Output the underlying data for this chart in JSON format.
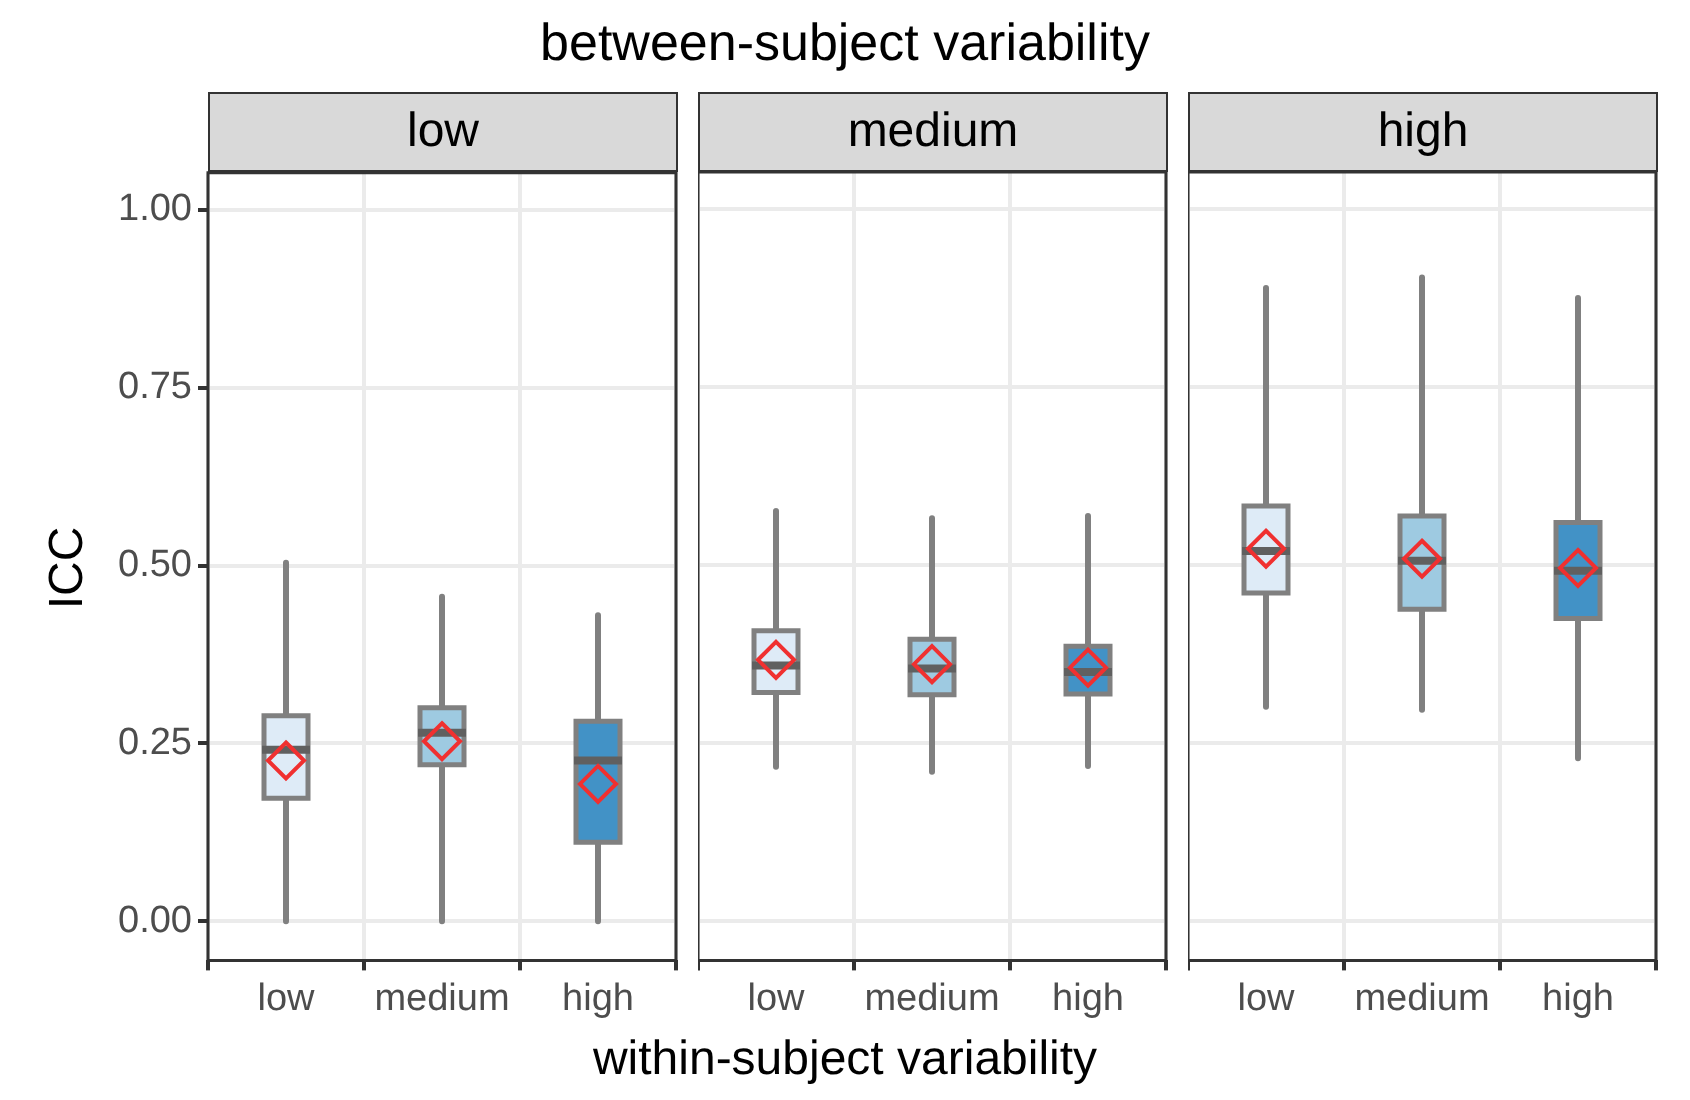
{
  "chart_data": [
    {
      "type": "box",
      "title": "low",
      "ylabel": "ICC",
      "categories": [
        "low",
        "medium",
        "high"
      ],
      "colors": [
        "#deebf7",
        "#9ecae1",
        "#4292c6"
      ],
      "ylim": [
        -0.055,
        1.052
      ],
      "yticks": [
        {
          "value": 0,
          "label": "0.00"
        },
        {
          "value": 0.25,
          "label": "0.25"
        },
        {
          "value": 0.5,
          "label": "0.50"
        },
        {
          "value": 0.75,
          "label": "0.75"
        },
        {
          "value": 1,
          "label": "1.00"
        }
      ],
      "grid": true,
      "marker": "diamond",
      "boxes": [
        {
          "low": 0,
          "q1": 0.173,
          "median": 0.241,
          "q3": 0.289,
          "high": 0.504,
          "mean": 0.226
        },
        {
          "low": 0,
          "q1": 0.22,
          "median": 0.265,
          "q3": 0.3,
          "high": 0.456,
          "mean": 0.253
        },
        {
          "low": 0,
          "q1": 0.111,
          "median": 0.226,
          "q3": 0.281,
          "high": 0.43,
          "mean": 0.193
        }
      ]
    },
    {
      "type": "box",
      "title": "medium",
      "subtitle": "between-subject variability",
      "xlabel": "within-subject variability",
      "categories": [
        "low",
        "medium",
        "high"
      ],
      "colors": [
        "#deebf7",
        "#9ecae1",
        "#4292c6"
      ],
      "ylim": [
        -0.055,
        1.052
      ],
      "yticks": [
        0,
        0.25,
        0.5,
        0.75,
        1
      ],
      "grid": true,
      "marker": "diamond",
      "tick_labels": "x",
      "boxes": [
        {
          "low": 0.217,
          "q1": 0.321,
          "median": 0.359,
          "q3": 0.408,
          "high": 0.576,
          "mean": 0.367
        },
        {
          "low": 0.21,
          "q1": 0.318,
          "median": 0.355,
          "q3": 0.396,
          "high": 0.566,
          "mean": 0.361
        },
        {
          "low": 0.218,
          "q1": 0.319,
          "median": 0.35,
          "q3": 0.386,
          "high": 0.569,
          "mean": 0.356
        }
      ]
    },
    {
      "type": "box",
      "title": "high",
      "categories": [
        "low",
        "medium",
        "high"
      ],
      "colors": [
        "#deebf7",
        "#9ecae1",
        "#4292c6"
      ],
      "ylim": [
        -0.055,
        1.052
      ],
      "yticks": [
        0,
        0.25,
        0.5,
        0.75,
        1
      ],
      "grid": true,
      "marker": "diamond",
      "tick_labels": "x",
      "boxes": [
        {
          "low": 0.301,
          "q1": 0.461,
          "median": 0.52,
          "q3": 0.583,
          "high": 0.889,
          "mean": 0.523
        },
        {
          "low": 0.297,
          "q1": 0.438,
          "median": 0.506,
          "q3": 0.569,
          "high": 0.904,
          "mean": 0.509
        },
        {
          "low": 0.229,
          "q1": 0.425,
          "median": 0.492,
          "q3": 0.56,
          "high": 0.875,
          "mean": 0.496
        }
      ]
    }
  ]
}
